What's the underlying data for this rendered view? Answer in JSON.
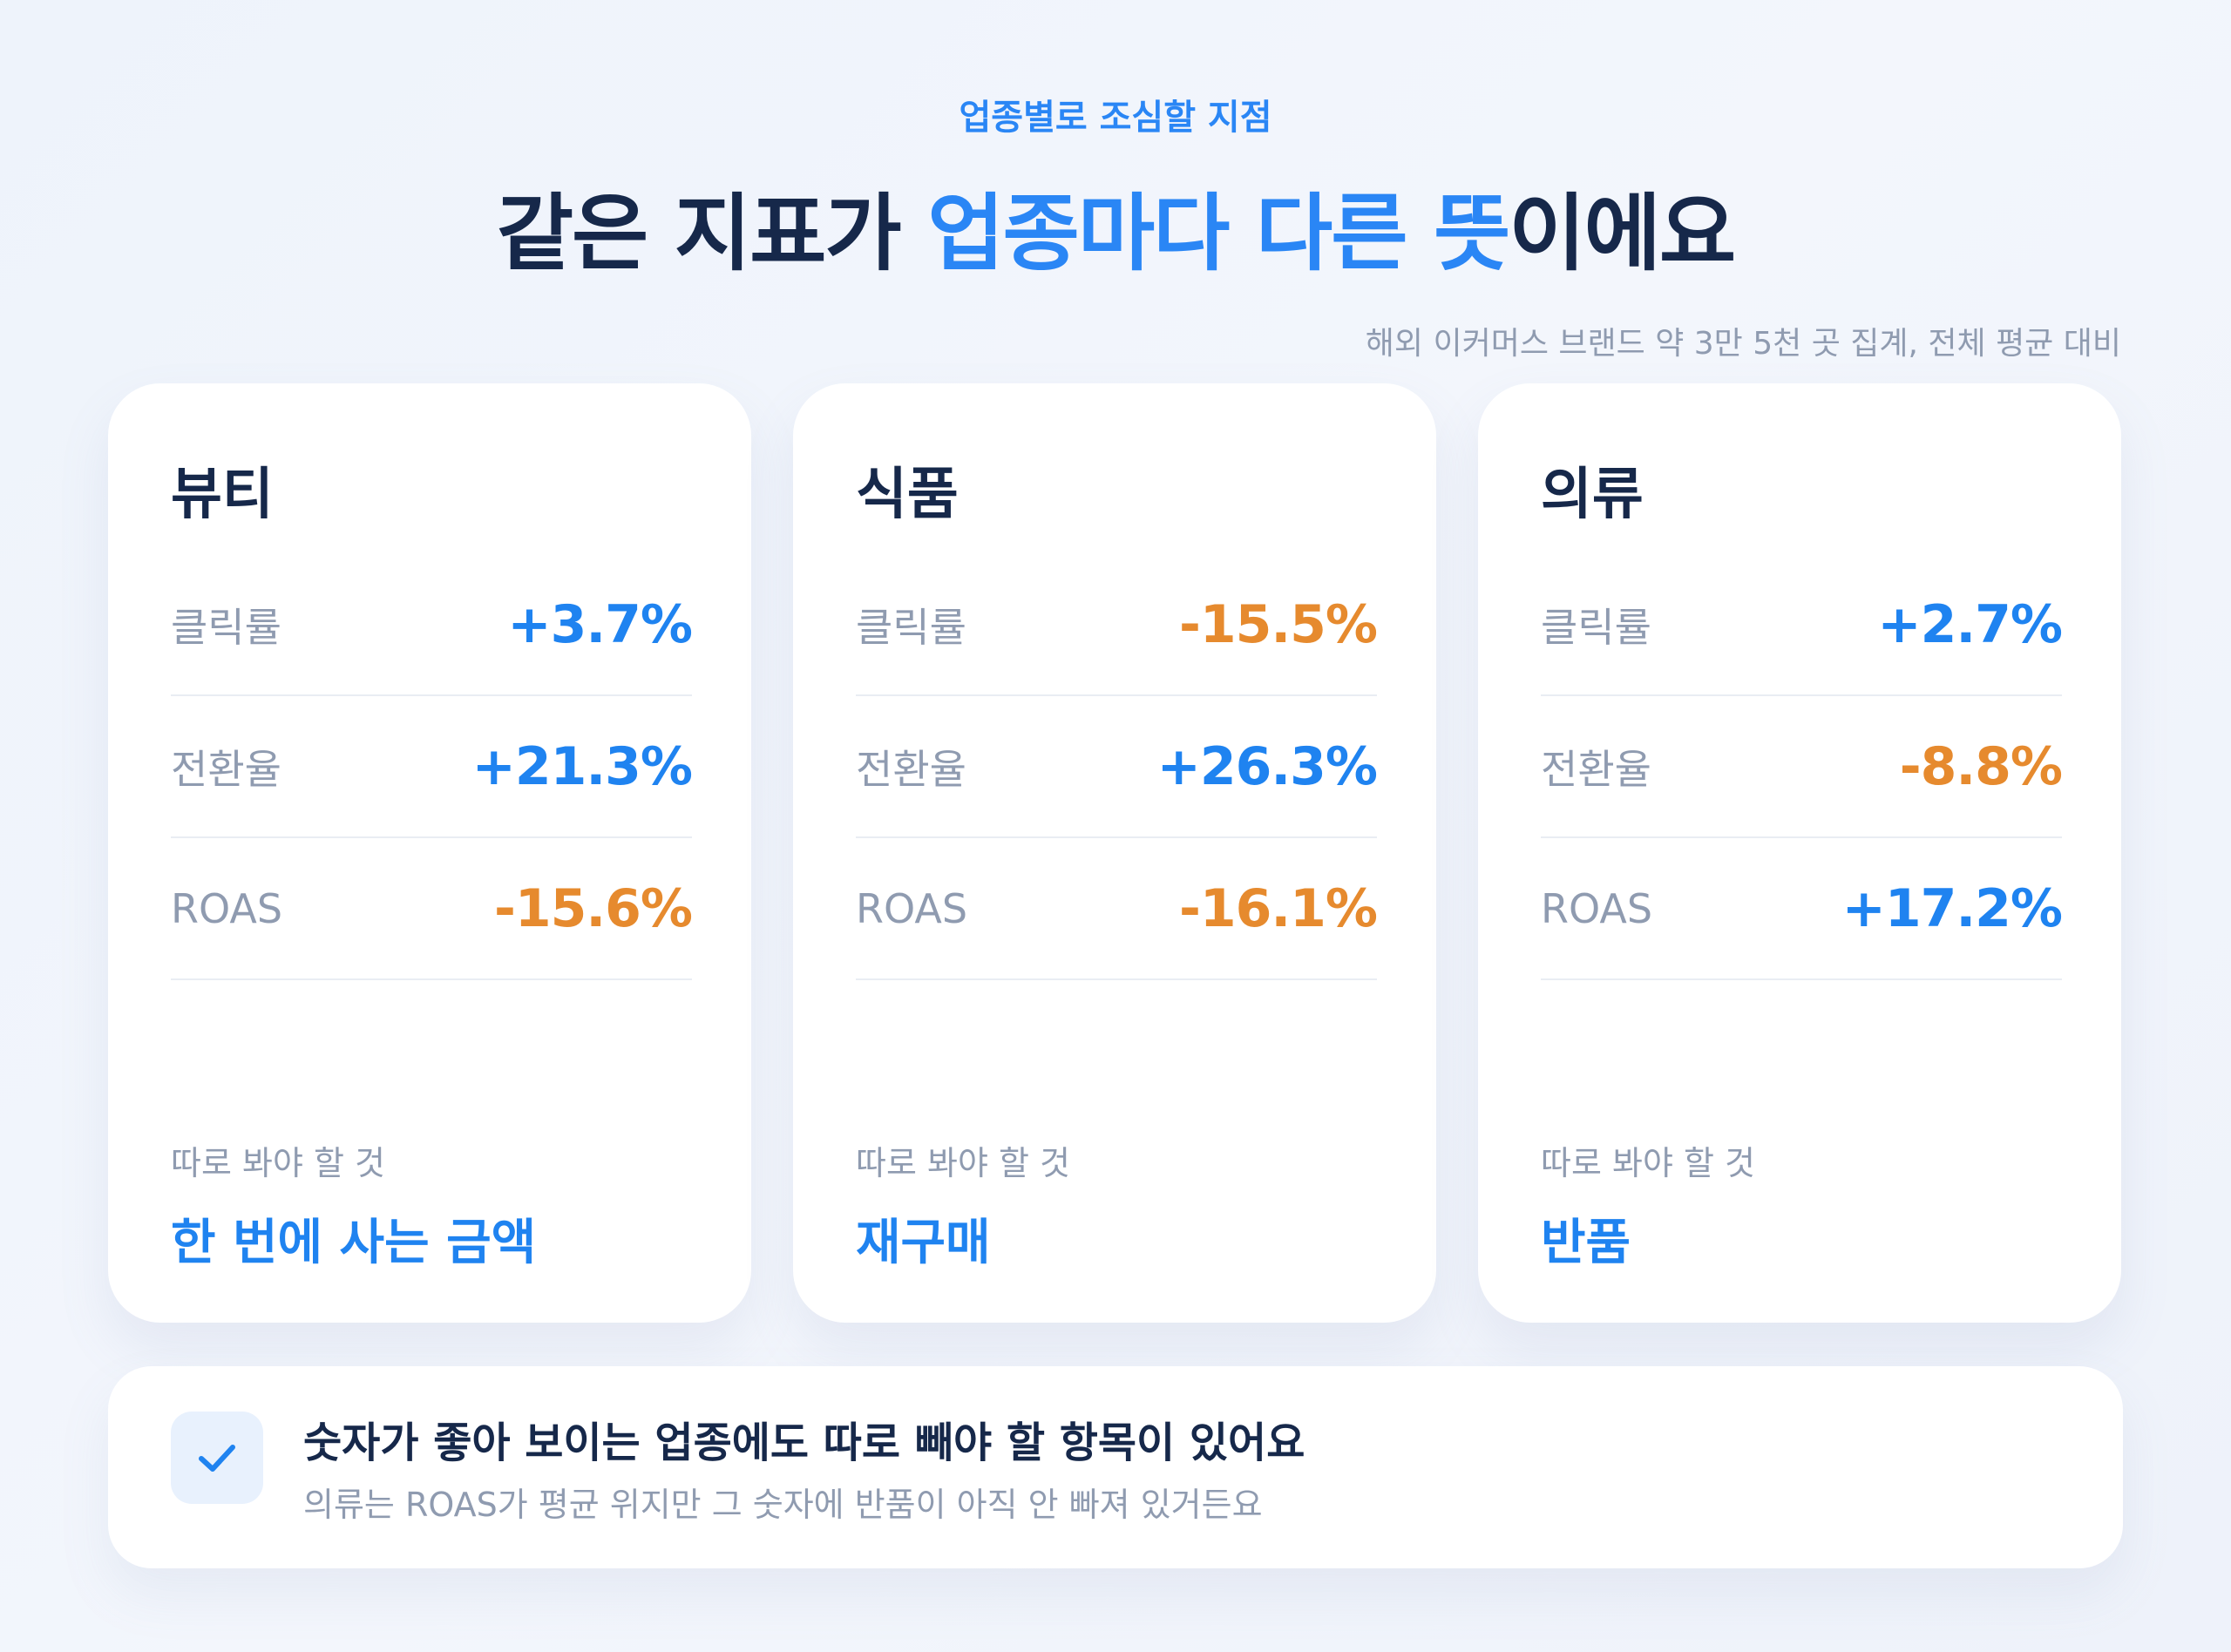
{
  "header": {
    "eyebrow": "업종별로 조심할 지점",
    "headline_part1": "같은 지표가 ",
    "headline_highlight1": "업종마다",
    "headline_space": " ",
    "headline_highlight2": "다른 뜻",
    "headline_part2": "이에요",
    "source_note": "해외 이커머스 브랜드 약 3만 5천 곳 집계, 전체 평균 대비"
  },
  "colors": {
    "accent_blue": "#1f83f0",
    "accent_orange": "#e68a2e",
    "title_navy": "#16284a",
    "muted_gray": "#8f9bb0"
  },
  "cards": [
    {
      "title": "뷰티",
      "metrics": [
        {
          "label": "클릭률",
          "value": "+3.7%",
          "tone": "positive"
        },
        {
          "label": "전환율",
          "value": "+21.3%",
          "tone": "positive"
        },
        {
          "label": "ROAS",
          "value": "-15.6%",
          "tone": "negative"
        }
      ],
      "footer_label": "따로 봐야 할 것",
      "footer_value": "한 번에 사는 금액"
    },
    {
      "title": "식품",
      "metrics": [
        {
          "label": "클릭률",
          "value": "-15.5%",
          "tone": "negative"
        },
        {
          "label": "전환율",
          "value": "+26.3%",
          "tone": "positive"
        },
        {
          "label": "ROAS",
          "value": "-16.1%",
          "tone": "negative"
        }
      ],
      "footer_label": "따로 봐야 할 것",
      "footer_value": "재구매"
    },
    {
      "title": "의류",
      "metrics": [
        {
          "label": "클릭률",
          "value": "+2.7%",
          "tone": "positive"
        },
        {
          "label": "전환율",
          "value": "-8.8%",
          "tone": "negative"
        },
        {
          "label": "ROAS",
          "value": "+17.2%",
          "tone": "positive"
        }
      ],
      "footer_label": "따로 봐야 할 것",
      "footer_value": "반품"
    }
  ],
  "banner": {
    "icon": "check-icon",
    "title": "숫자가 좋아 보이는 업종에도 따로 빼야 할 항목이 있어요",
    "description": "의류는 ROAS가 평균 위지만 그 숫자에 반품이 아직 안 빠져 있거든요"
  }
}
